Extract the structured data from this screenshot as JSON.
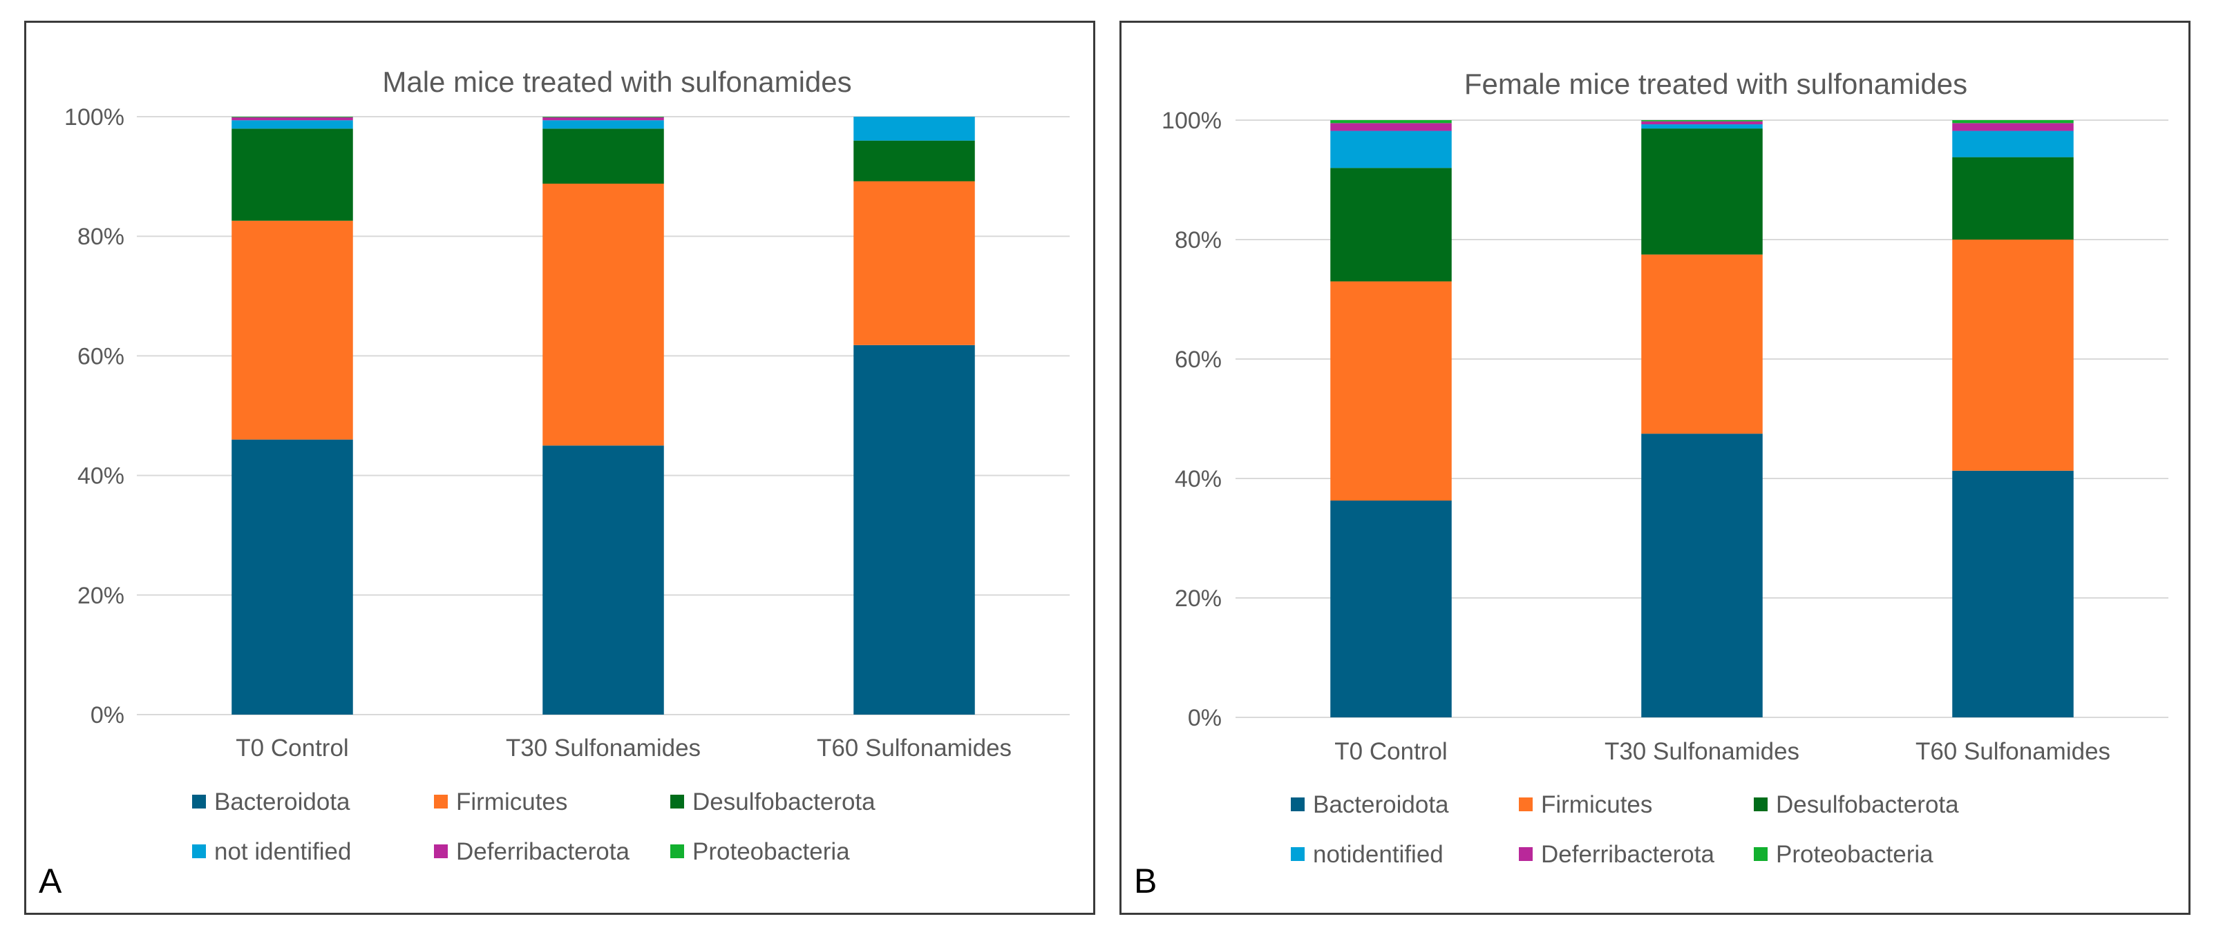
{
  "colors": {
    "Bacteroidota": "#005f85",
    "Firmicutes": "#ff7323",
    "Desulfobacterota": "#006d1a",
    "not identified": "#00a2d9",
    "Deferribacterota": "#b9289a",
    "Proteobacteria": "#12b02f",
    "grid": "#d9d9d9",
    "text": "#595959"
  },
  "chart_data": [
    {
      "type": "bar",
      "stacked": true,
      "panel_label": "A",
      "title": "Male mice treated with sulfonamides",
      "xlabel": "",
      "ylabel": "",
      "ylim": [
        0,
        100
      ],
      "y_ticks": [
        "0%",
        "20%",
        "40%",
        "60%",
        "80%",
        "100%"
      ],
      "categories": [
        "T0 Control",
        "T30  Sulfonamides",
        "T60 Sulfonamides"
      ],
      "legend_position": "bottom",
      "legend": [
        "Bacteroidota",
        "Firmicutes",
        "Desulfobacterota",
        "not identified",
        "Deferribacterota",
        "Proteobacteria"
      ],
      "series": [
        {
          "name": "Bacteroidota",
          "values": [
            46.0,
            45.0,
            61.8
          ]
        },
        {
          "name": "Firmicutes",
          "values": [
            36.6,
            43.8,
            27.4
          ]
        },
        {
          "name": "Desulfobacterota",
          "values": [
            15.4,
            9.2,
            6.8
          ]
        },
        {
          "name": "not identified",
          "values": [
            1.4,
            1.4,
            4.0
          ]
        },
        {
          "name": "Deferribacterota",
          "values": [
            0.5,
            0.5,
            0.0
          ]
        },
        {
          "name": "Proteobacteria",
          "values": [
            0.1,
            0.1,
            0.0
          ]
        }
      ]
    },
    {
      "type": "bar",
      "stacked": true,
      "panel_label": "B",
      "title": "Female mice treated with sulfonamides",
      "xlabel": "",
      "ylabel": "",
      "ylim": [
        0,
        100
      ],
      "y_ticks": [
        "0%",
        "20%",
        "40%",
        "60%",
        "80%",
        "100%"
      ],
      "categories": [
        "T0 Control",
        "T30  Sulfonamides",
        "T60 Sulfonamides"
      ],
      "legend_position": "bottom",
      "legend": [
        "Bacteroidota",
        "Firmicutes",
        "Desulfobacterota",
        "notidentified",
        "Deferribacterota",
        "Proteobacteria"
      ],
      "series": [
        {
          "name": "Bacteroidota",
          "values": [
            36.3,
            47.5,
            41.3
          ]
        },
        {
          "name": "Firmicutes",
          "values": [
            36.7,
            30.0,
            38.7
          ]
        },
        {
          "name": "Desulfobacterota",
          "values": [
            19.0,
            21.1,
            13.8
          ]
        },
        {
          "name": "not identified",
          "values": [
            6.2,
            0.7,
            4.4
          ]
        },
        {
          "name": "Deferribacterota",
          "values": [
            1.3,
            0.5,
            1.3
          ]
        },
        {
          "name": "Proteobacteria",
          "values": [
            0.5,
            0.2,
            0.5
          ]
        }
      ]
    }
  ]
}
